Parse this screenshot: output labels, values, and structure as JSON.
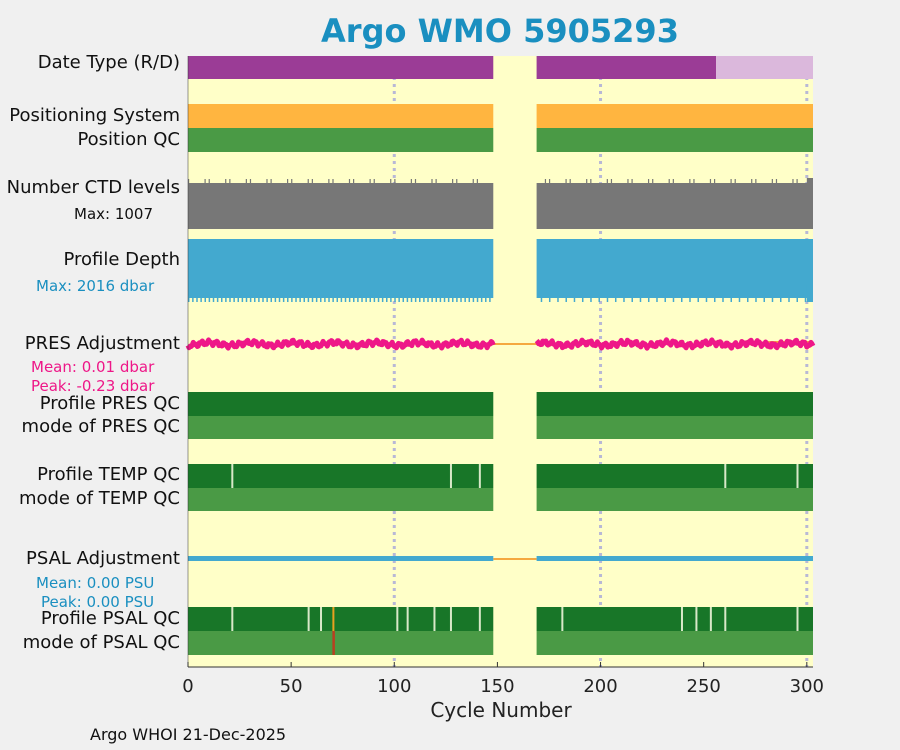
{
  "title": "Argo WMO 5905293",
  "footer": "Argo WHOI 21-Dec-2025",
  "labels": {
    "date_type": "Date Type (R/D)",
    "positioning_system": "Positioning System",
    "position_qc": "Position QC",
    "ctd_levels": "Number CTD levels",
    "ctd_max": "Max: 1007",
    "profile_depth": "Profile Depth",
    "depth_max": "Max: 2016 dbar",
    "pres_adjustment": "PRES Adjustment",
    "pres_mean": "Mean: 0.01 dbar",
    "pres_peak": "Peak: -0.23 dbar",
    "profile_pres_qc": "Profile PRES QC",
    "mode_pres_qc": "mode of PRES QC",
    "profile_temp_qc": "Profile TEMP QC",
    "mode_temp_qc": "mode of TEMP QC",
    "psal_adjustment": "PSAL Adjustment",
    "psal_mean": "Mean: 0.00 PSU",
    "psal_peak": "Peak: 0.00 PSU",
    "profile_psal_qc": "Profile PSAL QC",
    "mode_psal_qc": "mode of PSAL QC"
  },
  "colors": {
    "background": "#ffffc8",
    "realtime": "#9b3c96",
    "delayed": "#dbb8dc",
    "positioning": "#ffb540",
    "qc_good": "#4a9a45",
    "qc_dark": "#187628",
    "ctd": "#777777",
    "depth": "#43a9cf",
    "pres": "#ee1788",
    "psal": "#43a9cf",
    "gap_line": "#f5a940",
    "grid": "#b8b8d6",
    "title": "#1a8fc0",
    "depth_text": "#1a8fc0",
    "pres_text": "#ee1788",
    "psal_text": "#1a8fc0"
  },
  "chart_data": {
    "type": "timeline",
    "title": "Argo WMO 5905293",
    "xlabel": "Cycle Number",
    "xlim": [
      0,
      303
    ],
    "xticks": [
      0,
      50,
      100,
      150,
      200,
      250,
      300
    ],
    "gridlines_x": [
      100,
      200,
      300
    ],
    "data_segments": [
      [
        0,
        148
      ],
      [
        169,
        303
      ]
    ],
    "date_type": {
      "realtime": [
        [
          0,
          148
        ],
        [
          169,
          256
        ]
      ],
      "delayed": [
        [
          256,
          303
        ]
      ]
    },
    "ctd_levels_max": 1007,
    "profile_depth_max_dbar": 2016,
    "pres_adjustment": {
      "mean_dbar": 0.01,
      "peak_dbar": -0.23
    },
    "psal_adjustment": {
      "mean_psu": 0.0,
      "peak_psu": 0.0
    },
    "temp_qc_marks": [
      21,
      127,
      141,
      260,
      295
    ],
    "psal_qc_marks": [
      21,
      58,
      64,
      101,
      106,
      119,
      127,
      141,
      181,
      239,
      246,
      253,
      260,
      295
    ],
    "psal_mode_flag_cycle": 70
  }
}
